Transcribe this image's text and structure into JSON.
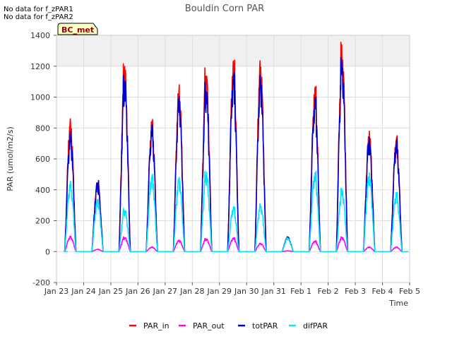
{
  "header": {
    "nodata_lines": [
      "No data for f_zPAR1",
      "No data for f_zPAR2"
    ],
    "badge_label": "BC_met"
  },
  "chart_data": {
    "type": "line",
    "title": "Bouldin Corn PAR",
    "xlabel": "Time",
    "ylabel": "PAR (umol/m2/s)",
    "ylim": [
      -200,
      1400
    ],
    "yticks": [
      -200,
      0,
      200,
      400,
      600,
      800,
      1000,
      1200,
      1400
    ],
    "xlim": [
      0,
      13
    ],
    "xticks": [
      {
        "value": 0,
        "label": "Jan 23"
      },
      {
        "value": 1,
        "label": "Jan 24"
      },
      {
        "value": 2,
        "label": "Jan 25"
      },
      {
        "value": 3,
        "label": "Jan 26"
      },
      {
        "value": 4,
        "label": "Jan 27"
      },
      {
        "value": 5,
        "label": "Jan 28"
      },
      {
        "value": 6,
        "label": "Jan 29"
      },
      {
        "value": 7,
        "label": "Jan 30"
      },
      {
        "value": 8,
        "label": "Jan 31"
      },
      {
        "value": 9,
        "label": "Feb 1"
      },
      {
        "value": 10,
        "label": "Feb 2"
      },
      {
        "value": 11,
        "label": "Feb 3"
      },
      {
        "value": 12,
        "label": "Feb 4"
      },
      {
        "value": 13,
        "label": "Feb 5"
      }
    ],
    "grid": true,
    "series": [
      {
        "name": "PAR_in",
        "color": "#ff0000",
        "peaks": [
          860,
          460,
          1215,
          855,
          1080,
          1190,
          1240,
          1235,
          95,
          1070,
          1355,
          780,
          750
        ]
      },
      {
        "name": "PAR_out",
        "color": "#ff00ff",
        "peaks": [
          100,
          15,
          95,
          30,
          75,
          85,
          90,
          55,
          5,
          70,
          95,
          30,
          30
        ]
      },
      {
        "name": "totPAR",
        "color": "#0000cc",
        "peaks": [
          780,
          460,
          1140,
          820,
          1005,
          1095,
          1160,
          1140,
          95,
          1000,
          1255,
          740,
          730
        ]
      },
      {
        "name": "difPAR",
        "color": "#00e5ff",
        "peaks": [
          455,
          340,
          280,
          500,
          480,
          520,
          290,
          310,
          90,
          520,
          410,
          510,
          385
        ]
      }
    ],
    "legend": "bottom"
  }
}
